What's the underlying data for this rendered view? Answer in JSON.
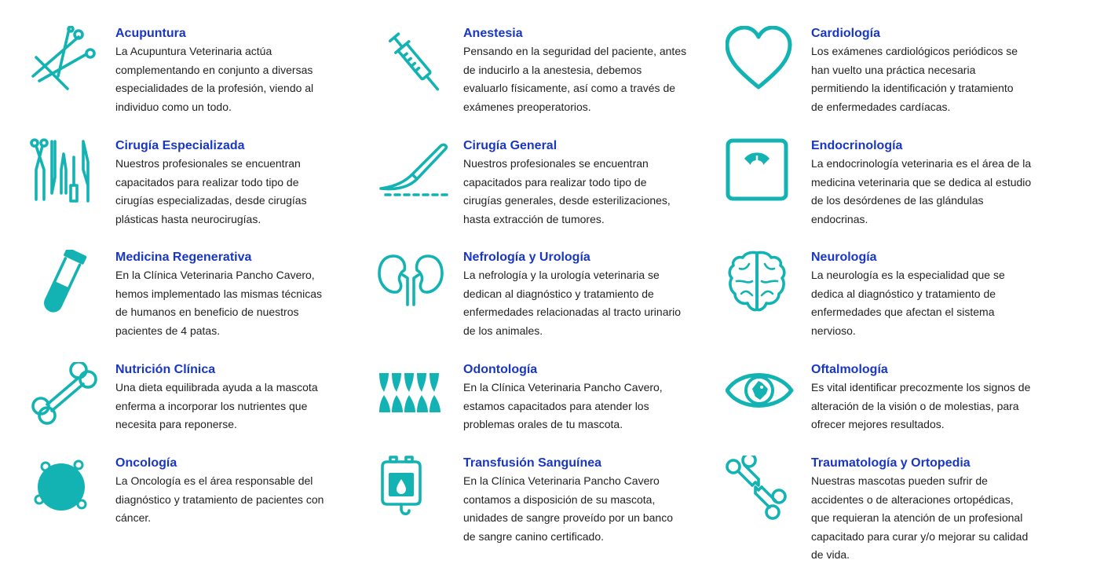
{
  "accent_color": "#14b3b3",
  "title_color": "#1a37c4",
  "services": [
    {
      "icon": "acupuncture-needles-icon",
      "title": "Acupuntura",
      "desc": [
        "La Acupuntura Veterinaria actúa",
        "complementando en conjunto a diversas",
        "especialidades de la profesión, viendo al",
        "individuo como un todo."
      ]
    },
    {
      "icon": "syringe-icon",
      "title": "Anestesia",
      "desc": [
        "Pensando en la seguridad del paciente, antes",
        "de inducirlo a la anestesia, debemos",
        "evaluarlo físicamente, así como a través de",
        "exámenes preoperatorios."
      ]
    },
    {
      "icon": "heart-icon",
      "title": "Cardiología",
      "desc": [
        "Los exámenes cardiológicos periódicos se",
        "han vuelto una práctica necesaria",
        "permitiendo la identificación y tratamiento",
        "de enfermedades cardíacas."
      ]
    },
    {
      "icon": "surgical-tools-icon",
      "title": "Cirugía Especializada",
      "desc": [
        "Nuestros profesionales se encuentran",
        "capacitados para realizar todo tipo de",
        "cirugías especializadas, desde cirugías",
        "plásticas hasta neurocirugías."
      ]
    },
    {
      "icon": "scalpel-icon",
      "title": "Cirugía General",
      "desc": [
        "Nuestros profesionales se encuentran",
        "capacitados para realizar todo tipo de",
        "cirugías generales, desde esterilizaciones,",
        "hasta extracción de tumores."
      ]
    },
    {
      "icon": "weight-scale-icon",
      "title": "Endocrinología",
      "desc": [
        "La endocrinología veterinaria es el área de la",
        "medicina veterinaria que se dedica al estudio",
        "de los desórdenes de las glándulas",
        "endocrinas."
      ]
    },
    {
      "icon": "test-tube-icon",
      "title": "Medicina Regenerativa",
      "desc": [
        "En la Clínica Veterinaria Pancho Cavero,",
        "hemos implementado las mismas técnicas",
        "de humanos en beneficio de nuestros",
        "pacientes de 4 patas."
      ]
    },
    {
      "icon": "kidneys-icon",
      "title": "Nefrología y Urología",
      "desc": [
        "La nefrología y la urología veterinaria se",
        "dedican al diagnóstico y tratamiento de",
        "enfermedades relacionadas al tracto urinario",
        "de los animales."
      ]
    },
    {
      "icon": "brain-icon",
      "title": "Neurología",
      "desc": [
        "La neurología es la especialidad que se",
        "dedica al diagnóstico y tratamiento de",
        "enfermedades que afectan el sistema",
        "nervioso."
      ]
    },
    {
      "icon": "bone-icon",
      "title": "Nutrición Clínica",
      "desc": [
        "Una dieta equilibrada ayuda a la mascota",
        "enferma a incorporar los nutrientes que",
        "necesita para reponerse."
      ]
    },
    {
      "icon": "teeth-icon",
      "title": "Odontología",
      "desc": [
        "En la Clínica Veterinaria Pancho Cavero,",
        "estamos capacitados para atender los",
        "problemas orales de tu mascota."
      ]
    },
    {
      "icon": "eye-icon",
      "title": "Oftalmología",
      "desc": [
        "Es vital identificar precozmente los signos de",
        "alteración de la visión o de molestias, para",
        "ofrecer mejores resultados."
      ]
    },
    {
      "icon": "cell-icon",
      "title": "Oncología",
      "desc": [
        "La Oncología es el área responsable del",
        "diagnóstico y tratamiento de pacientes con",
        "cáncer."
      ]
    },
    {
      "icon": "blood-bag-icon",
      "title": "Transfusión Sanguínea",
      "desc": [
        "En la Clínica Veterinaria Pancho Cavero",
        "contamos a disposición de su mascota,",
        "unidades de sangre proveído por un banco",
        "de sangre canino certificado."
      ]
    },
    {
      "icon": "broken-bone-icon",
      "title": "Traumatología y Ortopedia",
      "desc": [
        "Nuestras mascotas pueden sufrir de",
        "accidentes o de alteraciones ortopédicas,",
        "que requieran la atención de un profesional",
        "capacitado para curar y/o mejorar su calidad",
        "de vida."
      ]
    }
  ]
}
